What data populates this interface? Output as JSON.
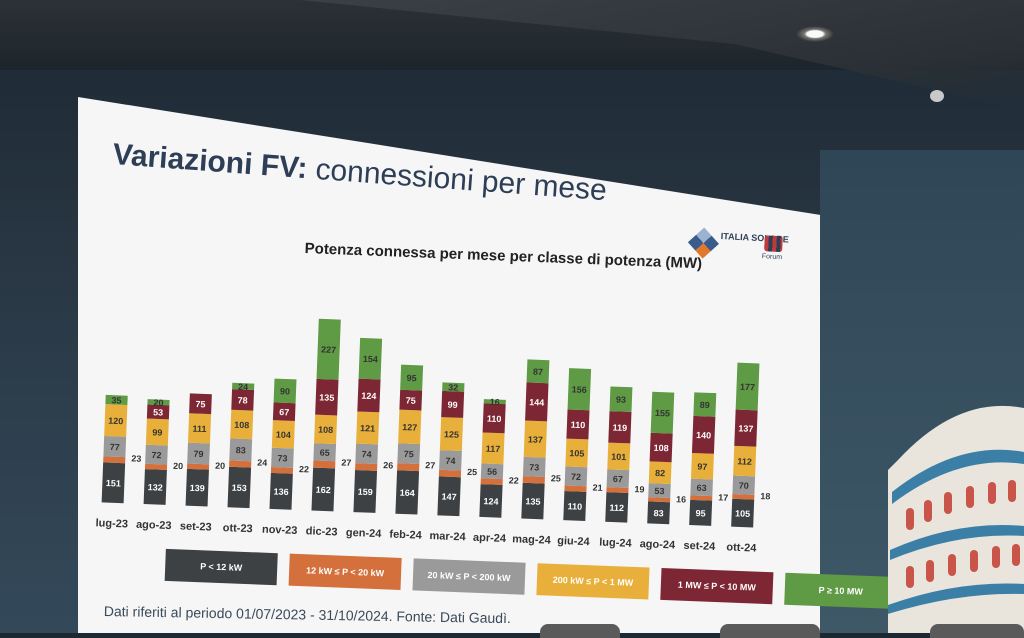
{
  "slide": {
    "title_bold": "Variazioni FV:",
    "title_rest": "connessioni per mese",
    "logo_brand": "ITALIA SOLARE",
    "logo_forum": "Forum",
    "footnote": "Dati riferiti al periodo 01/07/2023 - 31/10/2024. Fonte: Dati Gaudì."
  },
  "colors": {
    "lt12kw": "#3d4143",
    "k12_20": "#d4703c",
    "k20_200": "#9a9a9a",
    "k200_1mw": "#e8b03a",
    "mw1_10": "#7e2734",
    "ge10mw": "#5f9a45"
  },
  "chart_data": {
    "type": "bar",
    "stacked": true,
    "title": "Potenza connessa per mese per classe di potenza (MW)",
    "categories": [
      "lug-23",
      "ago-23",
      "set-23",
      "ott-23",
      "nov-23",
      "dic-23",
      "gen-24",
      "feb-24",
      "mar-24",
      "apr-24",
      "mag-24",
      "giu-24",
      "lug-24",
      "ago-24",
      "set-24",
      "ott-24"
    ],
    "series": [
      {
        "name": "P < 12 kW",
        "color": "#3d4143",
        "values": [
          151,
          132,
          139,
          153,
          136,
          162,
          159,
          164,
          147,
          124,
          135,
          110,
          112,
          83,
          95,
          105
        ]
      },
      {
        "name": "12 kW ≤ P < 20 kW",
        "color": "#d4703c",
        "values": [
          23,
          20,
          20,
          24,
          22,
          27,
          26,
          27,
          25,
          22,
          25,
          21,
          19,
          16,
          17,
          18
        ]
      },
      {
        "name": "20 kW ≤ P < 200 kW",
        "color": "#9a9a9a",
        "values": [
          77,
          72,
          79,
          83,
          73,
          65,
          74,
          75,
          74,
          56,
          73,
          72,
          67,
          53,
          63,
          70
        ]
      },
      {
        "name": "200 kW ≤ P < 1 MW",
        "color": "#e8b03a",
        "values": [
          120,
          99,
          111,
          108,
          104,
          108,
          121,
          127,
          125,
          117,
          137,
          105,
          101,
          82,
          97,
          112
        ]
      },
      {
        "name": "1 MW ≤ P < 10 MW",
        "color": "#7e2734",
        "values": [
          null,
          53,
          75,
          78,
          67,
          135,
          124,
          75,
          99,
          110,
          144,
          110,
          119,
          108,
          140,
          137
        ]
      },
      {
        "name": "P ≥ 10 MW",
        "color": "#5f9a45",
        "values": [
          35,
          20,
          null,
          24,
          90,
          227,
          154,
          95,
          32,
          16,
          87,
          156,
          93,
          155,
          89,
          177
        ]
      }
    ],
    "outside_labels": {
      "series": "12 kW ≤ P < 20 kW"
    }
  }
}
